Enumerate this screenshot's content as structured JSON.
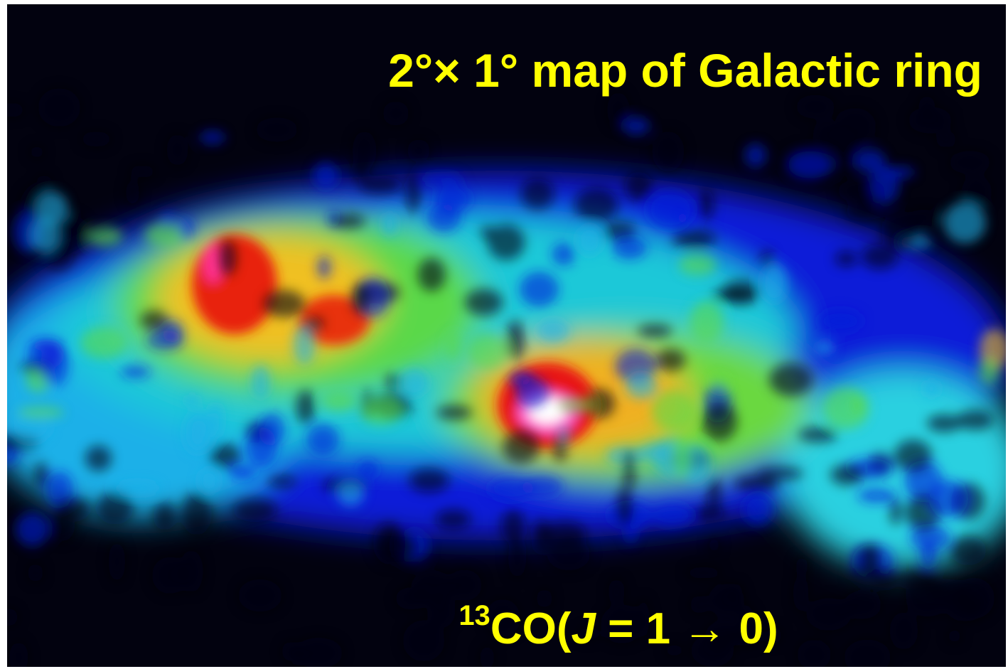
{
  "title": "2°× 1° map of Galactic ring",
  "label": {
    "superscript": "13",
    "molecule": "CO(",
    "italic": "J",
    "rest": " = 1 → 0)"
  }
}
